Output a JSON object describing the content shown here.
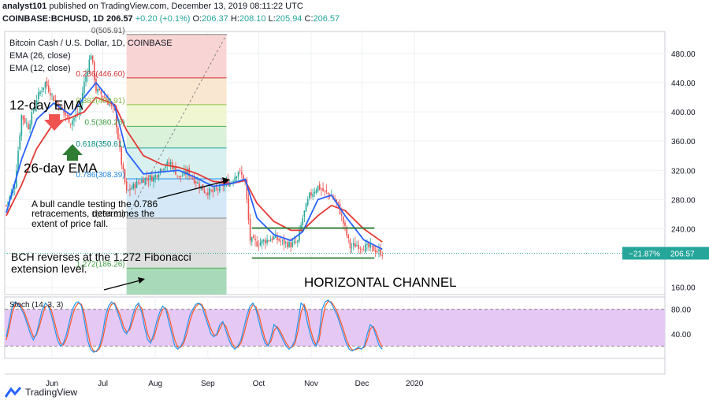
{
  "header": {
    "publisher": "analyst101",
    "published_text": "published on TradingView.com, December 13, 2019 08:11:22 UTC",
    "symbol": "COINBASE:BCHUSD, 1D",
    "last": "206.57",
    "change": "+0.20 (+0.1%)",
    "o_label": "O:",
    "o": "206.37",
    "h_label": "H:",
    "h": "208.10",
    "l_label": "L:",
    "l": "205.94",
    "c_label": "C:",
    "c": "206.57"
  },
  "legend": {
    "title": "Bitcoin Cash / U.S. Dollar, 1D, COINBASE",
    "ema26": "EMA (26, close)",
    "ema12": "EMA (12, close)"
  },
  "annotations": {
    "ema12_label": "12-day EMA",
    "ema26_label": "26-day EMA",
    "bull_candle_line1": "A bull candle testing the 0.786",
    "bull_candle_line2": "retracements, determines the",
    "bull_candle_line3": "extent of price fall.",
    "bch_line1": "BCH reverses at the 1.272 Fibonacci",
    "bch_line2": "extension level.",
    "channel": "HORIZONTAL CHANNEL"
  },
  "price_badge": {
    "pct": "−21.87%",
    "price": "206.57"
  },
  "footer": {
    "brand": "TradingView"
  },
  "colors": {
    "up": "#26a69a",
    "down": "#ef5350",
    "ema12": "#2962ff",
    "ema26": "#e53935",
    "stoch_k": "#2196f3",
    "stoch_d": "#ff5722",
    "stoch_bg": "#e6c8f5"
  },
  "chart_data": [
    {
      "type": "candlestick",
      "title": "Bitcoin Cash / U.S. Dollar, 1D, COINBASE",
      "ylim": [
        150,
        510
      ],
      "yticks": [
        "480.00",
        "440.00",
        "400.00",
        "360.00",
        "320.00",
        "280.00",
        "240.00",
        "160.00"
      ],
      "xticks": [
        "Jun",
        "Jul",
        "Aug",
        "Sep",
        "Oct",
        "Nov",
        "Dec",
        "2020"
      ],
      "close_path": [
        [
          "2019-05-05",
          272
        ],
        [
          "2019-05-10",
          300
        ],
        [
          "2019-05-14",
          395
        ],
        [
          "2019-05-18",
          380
        ],
        [
          "2019-05-23",
          418
        ],
        [
          "2019-05-28",
          440
        ],
        [
          "2019-06-02",
          418
        ],
        [
          "2019-06-07",
          402
        ],
        [
          "2019-06-12",
          386
        ],
        [
          "2019-06-17",
          400
        ],
        [
          "2019-06-20",
          440
        ],
        [
          "2019-06-24",
          480
        ],
        [
          "2019-06-27",
          430
        ],
        [
          "2019-07-02",
          420
        ],
        [
          "2019-07-08",
          400
        ],
        [
          "2019-07-12",
          330
        ],
        [
          "2019-07-15",
          290
        ],
        [
          "2019-07-20",
          300
        ],
        [
          "2019-07-25",
          308
        ],
        [
          "2019-07-31",
          310
        ],
        [
          "2019-08-05",
          325
        ],
        [
          "2019-08-10",
          330
        ],
        [
          "2019-08-15",
          310
        ],
        [
          "2019-08-20",
          318
        ],
        [
          "2019-08-25",
          305
        ],
        [
          "2019-08-30",
          292
        ],
        [
          "2019-09-04",
          290
        ],
        [
          "2019-09-10",
          300
        ],
        [
          "2019-09-15",
          305
        ],
        [
          "2019-09-19",
          320
        ],
        [
          "2019-09-23",
          305
        ],
        [
          "2019-09-26",
          225
        ],
        [
          "2019-09-30",
          220
        ],
        [
          "2019-10-05",
          224
        ],
        [
          "2019-10-10",
          228
        ],
        [
          "2019-10-15",
          222
        ],
        [
          "2019-10-20",
          218
        ],
        [
          "2019-10-24",
          222
        ],
        [
          "2019-10-27",
          255
        ],
        [
          "2019-10-31",
          285
        ],
        [
          "2019-11-05",
          298
        ],
        [
          "2019-11-09",
          290
        ],
        [
          "2019-11-13",
          285
        ],
        [
          "2019-11-17",
          272
        ],
        [
          "2019-11-21",
          240
        ],
        [
          "2019-11-24",
          215
        ],
        [
          "2019-11-28",
          218
        ],
        [
          "2019-12-02",
          215
        ],
        [
          "2019-12-06",
          214
        ],
        [
          "2019-12-10",
          210
        ],
        [
          "2019-12-13",
          206.57
        ]
      ],
      "ema12_path": [
        [
          "2019-05-05",
          262
        ],
        [
          "2019-05-14",
          335
        ],
        [
          "2019-05-23",
          390
        ],
        [
          "2019-06-02",
          412
        ],
        [
          "2019-06-12",
          396
        ],
        [
          "2019-06-20",
          420
        ],
        [
          "2019-06-27",
          440
        ],
        [
          "2019-07-08",
          408
        ],
        [
          "2019-07-15",
          345
        ],
        [
          "2019-07-25",
          315
        ],
        [
          "2019-08-05",
          318
        ],
        [
          "2019-08-15",
          320
        ],
        [
          "2019-08-25",
          310
        ],
        [
          "2019-09-04",
          298
        ],
        [
          "2019-09-15",
          302
        ],
        [
          "2019-09-23",
          308
        ],
        [
          "2019-09-30",
          255
        ],
        [
          "2019-10-10",
          232
        ],
        [
          "2019-10-20",
          224
        ],
        [
          "2019-10-27",
          236
        ],
        [
          "2019-11-05",
          280
        ],
        [
          "2019-11-13",
          286
        ],
        [
          "2019-11-21",
          258
        ],
        [
          "2019-12-02",
          225
        ],
        [
          "2019-12-13",
          212
        ]
      ],
      "ema26_path": [
        [
          "2019-05-05",
          258
        ],
        [
          "2019-05-14",
          300
        ],
        [
          "2019-05-23",
          350
        ],
        [
          "2019-06-02",
          385
        ],
        [
          "2019-06-12",
          392
        ],
        [
          "2019-06-20",
          400
        ],
        [
          "2019-06-27",
          420
        ],
        [
          "2019-07-08",
          410
        ],
        [
          "2019-07-15",
          375
        ],
        [
          "2019-07-25",
          340
        ],
        [
          "2019-08-05",
          328
        ],
        [
          "2019-08-15",
          324
        ],
        [
          "2019-08-25",
          316
        ],
        [
          "2019-09-04",
          305
        ],
        [
          "2019-09-15",
          302
        ],
        [
          "2019-09-23",
          306
        ],
        [
          "2019-09-30",
          275
        ],
        [
          "2019-10-10",
          250
        ],
        [
          "2019-10-20",
          238
        ],
        [
          "2019-10-27",
          238
        ],
        [
          "2019-11-05",
          258
        ],
        [
          "2019-11-13",
          272
        ],
        [
          "2019-11-21",
          265
        ],
        [
          "2019-12-02",
          240
        ],
        [
          "2019-12-13",
          222
        ]
      ],
      "fibonacci": {
        "start": "2019-07-15",
        "end": "2019-09-12",
        "levels": [
          {
            "label": "0(505.91)",
            "value": 505.91
          },
          {
            "label": "0.236(446.60)",
            "value": 446.6
          },
          {
            "label": "0.382(409.91)",
            "value": 409.91
          },
          {
            "label": "0.5(380.26)",
            "value": 380.26
          },
          {
            "label": "0.618(350.61)",
            "value": 350.61
          },
          {
            "label": "0.786(308.39)",
            "value": 308.39
          },
          {
            "label": "1(254.61)",
            "value": 254.61
          },
          {
            "label": "1.272(186.26)",
            "value": 186.26
          }
        ]
      },
      "channel_lines": [
        {
          "from": "2019-09-27",
          "to": "2019-12-13",
          "value": 241
        },
        {
          "from": "2019-09-27",
          "to": "2019-12-13",
          "value": 200
        }
      ],
      "last_price": 206.57
    },
    {
      "type": "line",
      "title": "Stoch (14, 3, 3)",
      "ylim": [
        0,
        100
      ],
      "yticks": [
        "80.00",
        "40.00"
      ],
      "bands": [
        80,
        20
      ],
      "x_start": "2019-05-05",
      "x_end": "2019-12-13",
      "k": [
        35,
        60,
        85,
        92,
        88,
        80,
        70,
        55,
        40,
        30,
        40,
        60,
        80,
        90,
        85,
        70,
        50,
        30,
        20,
        25,
        40,
        60,
        80,
        90,
        92,
        85,
        60,
        30,
        15,
        10,
        12,
        20,
        40,
        70,
        85,
        92,
        88,
        75,
        60,
        45,
        40,
        50,
        70,
        85,
        90,
        75,
        50,
        30,
        25,
        40,
        60,
        75,
        85,
        80,
        60,
        40,
        20,
        15,
        20,
        30,
        50,
        70,
        80,
        88,
        90,
        85,
        70,
        55,
        40,
        35,
        40,
        55,
        60,
        45,
        30,
        20,
        15,
        20,
        30,
        50,
        70,
        85,
        90,
        80,
        60,
        40,
        25,
        20,
        35,
        55,
        50,
        40,
        30,
        20,
        15,
        20,
        30,
        60,
        90,
        85,
        60,
        40,
        25,
        20,
        40,
        80,
        92,
        95,
        90,
        80,
        70,
        55,
        40,
        25,
        15,
        12,
        15,
        18,
        15,
        20,
        40,
        55,
        50,
        35,
        20,
        15
      ],
      "d": [
        30,
        50,
        75,
        88,
        90,
        84,
        75,
        62,
        48,
        35,
        38,
        52,
        70,
        84,
        87,
        78,
        60,
        40,
        25,
        22,
        32,
        50,
        70,
        84,
        90,
        88,
        72,
        45,
        22,
        12,
        11,
        16,
        30,
        55,
        78,
        88,
        90,
        80,
        68,
        52,
        43,
        46,
        60,
        78,
        87,
        82,
        62,
        40,
        28,
        32,
        50,
        68,
        80,
        82,
        70,
        50,
        30,
        18,
        18,
        25,
        40,
        60,
        75,
        84,
        89,
        88,
        78,
        62,
        48,
        38,
        38,
        48,
        58,
        52,
        38,
        25,
        18,
        18,
        25,
        40,
        60,
        78,
        87,
        84,
        70,
        50,
        32,
        22,
        28,
        45,
        52,
        45,
        35,
        25,
        18,
        18,
        25,
        45,
        75,
        88,
        75,
        50,
        32,
        22,
        30,
        60,
        85,
        93,
        92,
        85,
        75,
        62,
        48,
        32,
        20,
        14,
        14,
        16,
        16,
        18,
        30,
        48,
        52,
        42,
        28,
        18
      ]
    }
  ]
}
